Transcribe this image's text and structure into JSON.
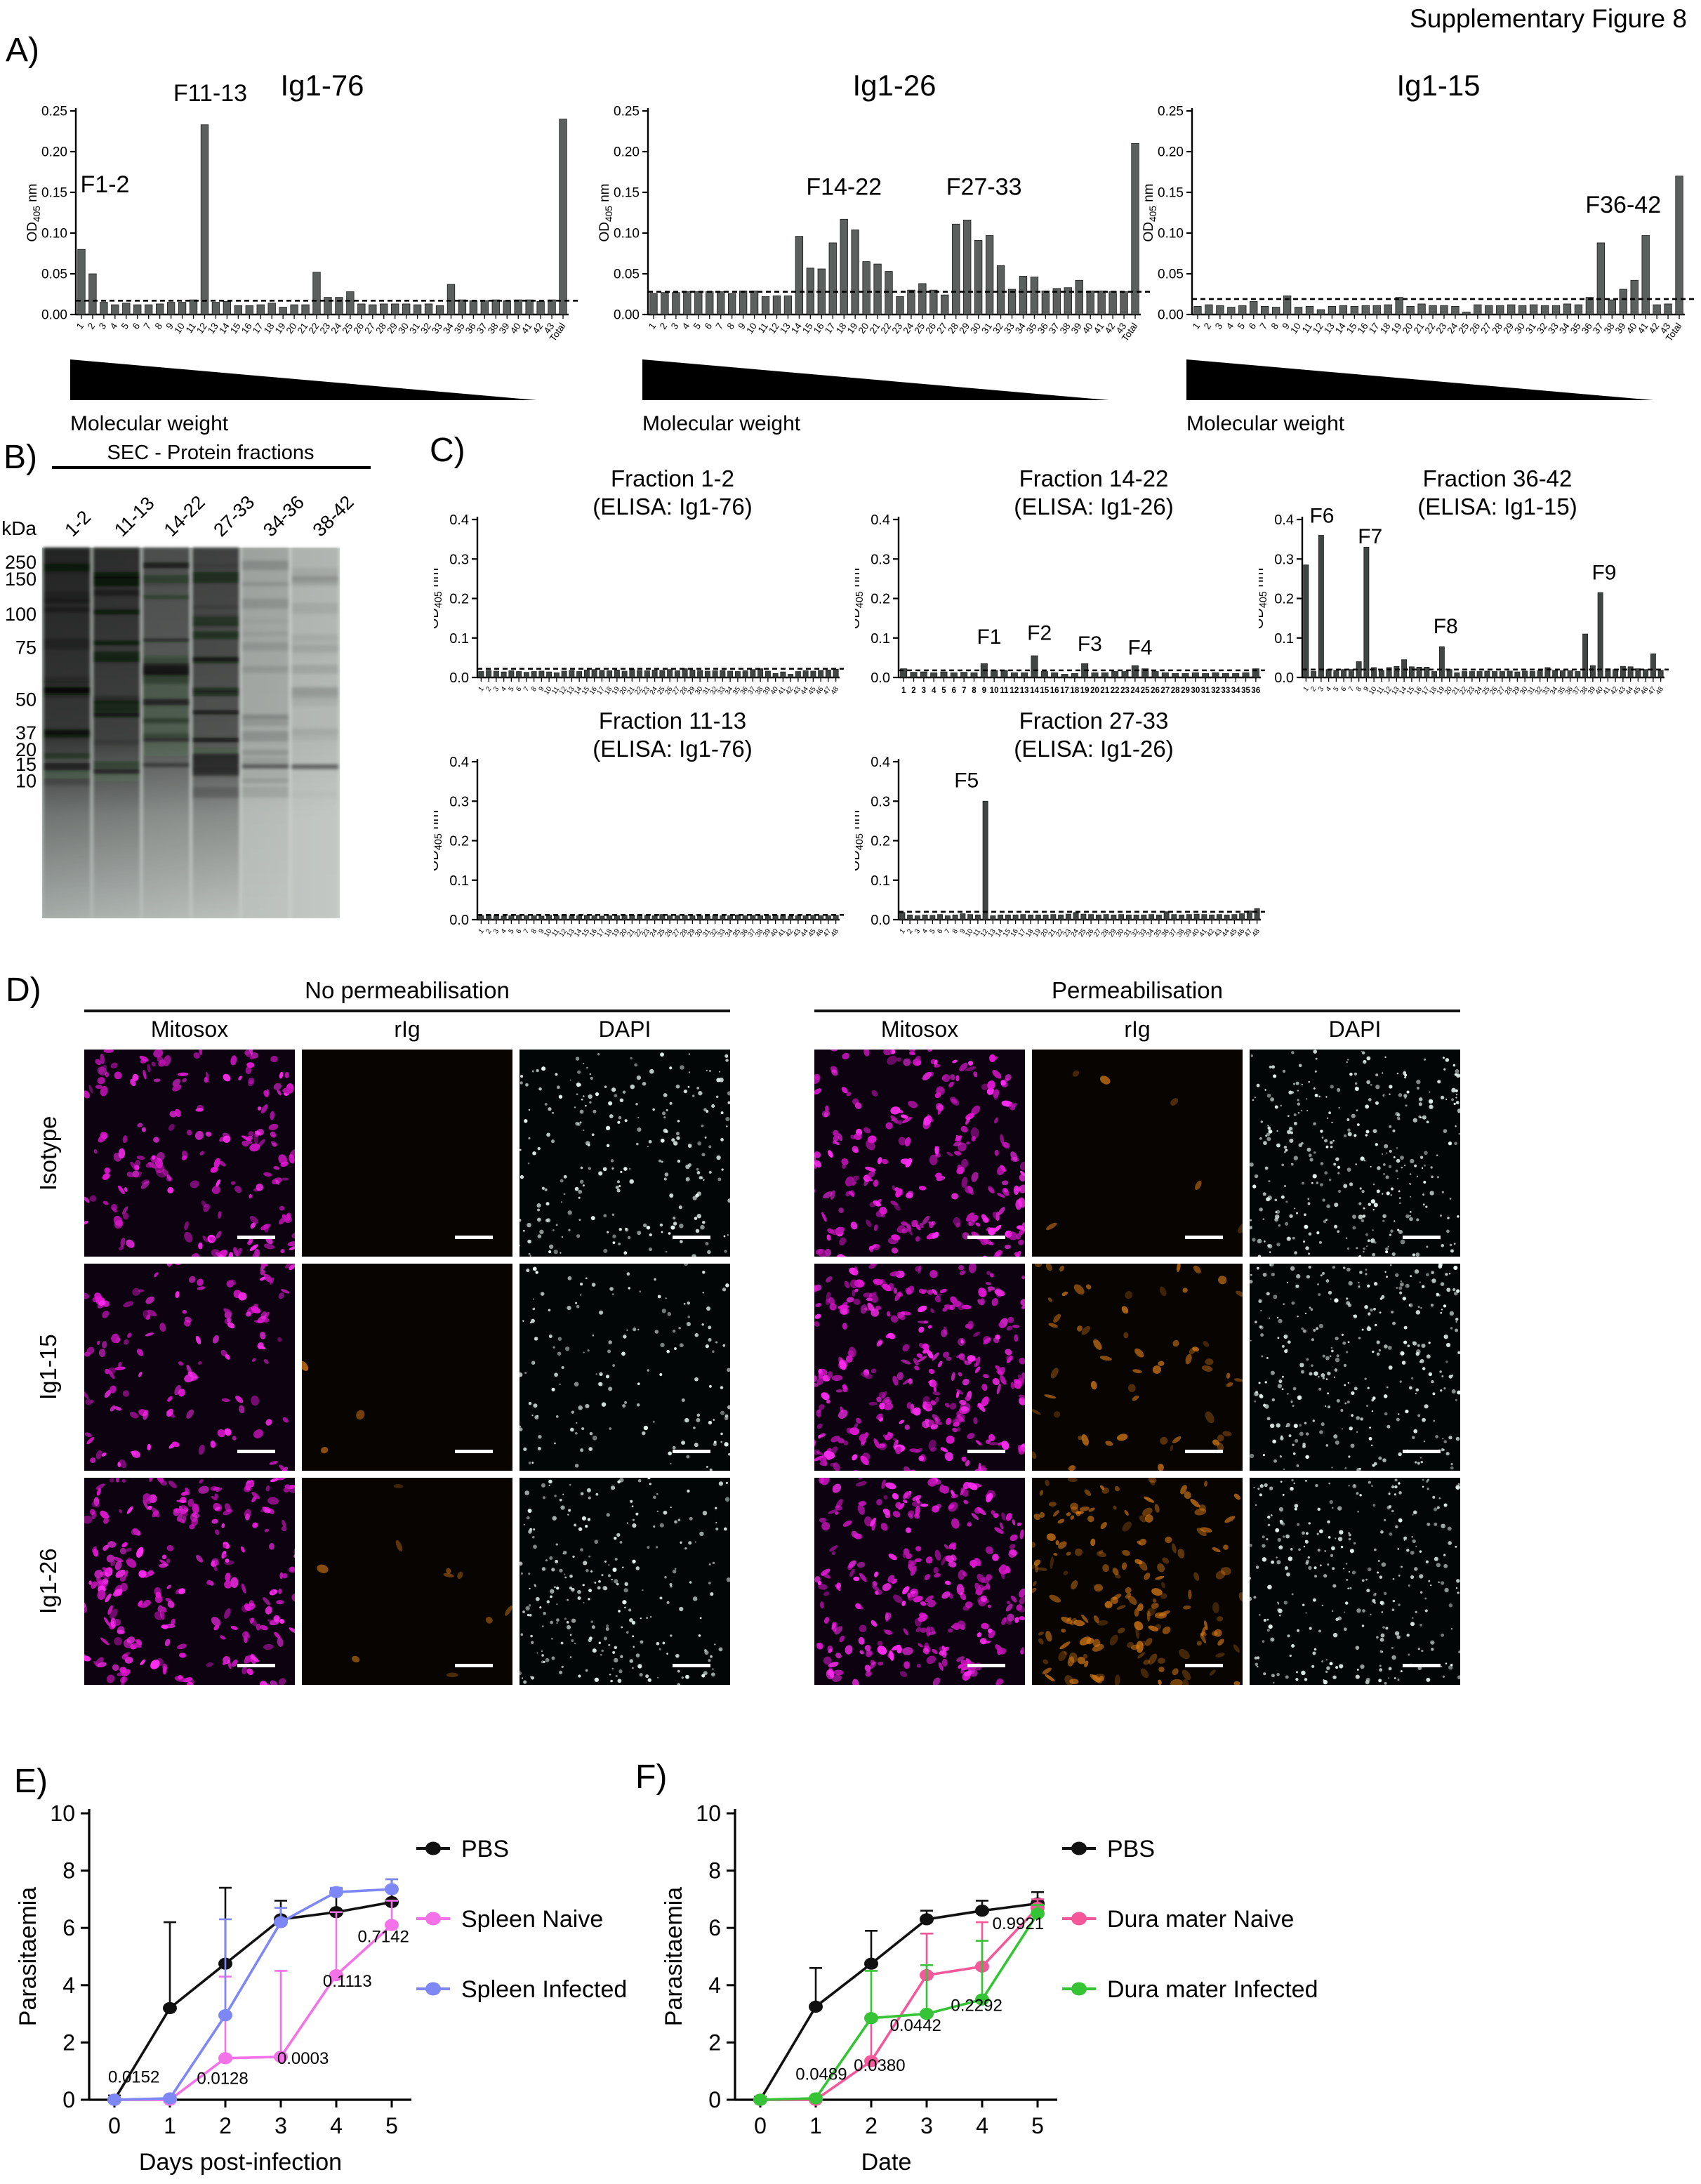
{
  "figure_title": "Supplementary Figure 8",
  "panels": {
    "a": "A)",
    "b": "B)",
    "c": "C)",
    "d": "D)",
    "e": "E)",
    "f": "F)"
  },
  "od_label": {
    "pre": "OD",
    "sub": "405",
    "post": " nm"
  },
  "cats44": [
    "1",
    "2",
    "3",
    "4",
    "5",
    "6",
    "7",
    "8",
    "9",
    "10",
    "11",
    "12",
    "13",
    "14",
    "15",
    "16",
    "17",
    "18",
    "19",
    "20",
    "21",
    "22",
    "23",
    "24",
    "25",
    "26",
    "27",
    "28",
    "29",
    "30",
    "31",
    "32",
    "33",
    "34",
    "35",
    "36",
    "37",
    "38",
    "39",
    "40",
    "41",
    "42",
    "43",
    "Total"
  ],
  "cats48": [
    "1",
    "2",
    "3",
    "4",
    "5",
    "6",
    "7",
    "8",
    "9",
    "10",
    "11",
    "12",
    "13",
    "14",
    "15",
    "16",
    "17",
    "18",
    "19",
    "20",
    "21",
    "22",
    "23",
    "24",
    "25",
    "26",
    "27",
    "28",
    "29",
    "30",
    "31",
    "32",
    "33",
    "34",
    "35",
    "36",
    "37",
    "38",
    "39",
    "40",
    "41",
    "42",
    "43",
    "44",
    "45",
    "46",
    "47",
    "48"
  ],
  "cats36": [
    "1",
    "2",
    "3",
    "4",
    "5",
    "6",
    "7",
    "8",
    "9",
    "10",
    "11",
    "12",
    "13",
    "14",
    "15",
    "16",
    "17",
    "18",
    "19",
    "20",
    "21",
    "22",
    "23",
    "24",
    "25",
    "26",
    "27",
    "28",
    "29",
    "30",
    "31",
    "32",
    "33",
    "34",
    "35",
    "36"
  ],
  "panelA": {
    "mw_label": "Molecular weight"
  },
  "panelB": {
    "header": "SEC - Protein fractions",
    "kda_label": "kDa",
    "lanes": [
      {
        "label": "1-2",
        "intensity": 0.95
      },
      {
        "label": "11-13",
        "intensity": 0.9
      },
      {
        "label": "14-22",
        "intensity": 0.72
      },
      {
        "label": "27-33",
        "intensity": 0.8
      },
      {
        "label": "34-36",
        "intensity": 0.22
      },
      {
        "label": "38-42",
        "intensity": 0.15
      }
    ],
    "markers": [
      {
        "kda": "250",
        "frac": 0.04
      },
      {
        "kda": "150",
        "frac": 0.085
      },
      {
        "kda": "100",
        "frac": 0.18
      },
      {
        "kda": "75",
        "frac": 0.27
      },
      {
        "kda": "50",
        "frac": 0.41
      },
      {
        "kda": "37",
        "frac": 0.5
      },
      {
        "kda": "20",
        "frac": 0.545
      },
      {
        "kda": "15",
        "frac": 0.585
      },
      {
        "kda": "10",
        "frac": 0.63
      }
    ]
  },
  "panelD": {
    "headers": [
      "No permeabilisation",
      "Permeabilisation"
    ],
    "col_labels": [
      "Mitosox",
      "rIg",
      "DAPI"
    ],
    "row_labels": [
      "Isotype",
      "Ig1-15",
      "Ig1-26"
    ],
    "colors": {
      "mitosox": "#f020e4",
      "rig": "#dd7d15",
      "dapi": "#e8f5f1"
    },
    "grid": [
      [
        {
          "t": "mito",
          "d": 0.55
        },
        {
          "t": "rig",
          "d": 0.0
        },
        {
          "t": "dapi",
          "d": 0.55
        },
        {
          "t": "mito",
          "d": 0.75
        },
        {
          "t": "rig",
          "d": 0.02
        },
        {
          "t": "dapi",
          "d": 0.8
        }
      ],
      [
        {
          "t": "mito",
          "d": 0.4
        },
        {
          "t": "rig",
          "d": 0.01
        },
        {
          "t": "dapi",
          "d": 0.35
        },
        {
          "t": "mito",
          "d": 0.95
        },
        {
          "t": "rig",
          "d": 0.18
        },
        {
          "t": "dapi",
          "d": 0.75
        }
      ],
      [
        {
          "t": "mito",
          "d": 0.75
        },
        {
          "t": "rig",
          "d": 0.03
        },
        {
          "t": "dapi",
          "d": 0.6
        },
        {
          "t": "mito",
          "d": 0.85
        },
        {
          "t": "rig",
          "d": 0.55
        },
        {
          "t": "dapi",
          "d": 0.7
        }
      ]
    ]
  },
  "chart_data": [
    {
      "id": "A1",
      "panel": "A",
      "type": "bar",
      "title": "Ig1-76",
      "ylabel": "OD405 nm",
      "xlabel": "Molecular weight",
      "cats": "cats44",
      "ymax": 0.25,
      "yticks": [
        "0.00",
        "0.05",
        "0.10",
        "0.15",
        "0.20",
        "0.25"
      ],
      "threshold": 0.017,
      "values": [
        0.08,
        0.05,
        0.015,
        0.012,
        0.014,
        0.012,
        0.012,
        0.013,
        0.015,
        0.015,
        0.018,
        0.233,
        0.015,
        0.016,
        0.011,
        0.011,
        0.012,
        0.014,
        0.009,
        0.012,
        0.012,
        0.052,
        0.021,
        0.021,
        0.028,
        0.013,
        0.012,
        0.013,
        0.013,
        0.013,
        0.012,
        0.013,
        0.011,
        0.037,
        0.018,
        0.017,
        0.017,
        0.018,
        0.017,
        0.018,
        0.018,
        0.016,
        0.018,
        0.24
      ],
      "annotations": [
        {
          "text": "F1-2",
          "xi": 2.6,
          "y": 0.15
        },
        {
          "text": "F11-13",
          "xi": 12,
          "y": 0.262
        }
      ]
    },
    {
      "id": "A2",
      "panel": "A",
      "type": "bar",
      "title": "Ig1-26",
      "ylabel": "OD405 nm",
      "xlabel": "Molecular weight",
      "cats": "cats44",
      "ymax": 0.25,
      "yticks": [
        "0.00",
        "0.05",
        "0.10",
        "0.15",
        "0.20",
        "0.25"
      ],
      "threshold": 0.028,
      "values": [
        0.026,
        0.027,
        0.027,
        0.028,
        0.028,
        0.028,
        0.028,
        0.026,
        0.029,
        0.029,
        0.022,
        0.023,
        0.023,
        0.096,
        0.057,
        0.056,
        0.088,
        0.117,
        0.104,
        0.065,
        0.062,
        0.053,
        0.022,
        0.03,
        0.038,
        0.03,
        0.024,
        0.111,
        0.116,
        0.091,
        0.097,
        0.06,
        0.031,
        0.047,
        0.046,
        0.029,
        0.032,
        0.033,
        0.042,
        0.029,
        0.029,
        0.028,
        0.028,
        0.21
      ],
      "annotations": [
        {
          "text": "F14-22",
          "xi": 17.5,
          "y": 0.147
        },
        {
          "text": "F27-33",
          "xi": 30,
          "y": 0.147
        }
      ]
    },
    {
      "id": "A3",
      "panel": "A",
      "type": "bar",
      "title": "Ig1-15",
      "ylabel": "OD405 nm",
      "xlabel": "Molecular weight",
      "cats": "cats44",
      "ymax": 0.25,
      "yticks": [
        "0.00",
        "0.05",
        "0.10",
        "0.15",
        "0.20",
        "0.25"
      ],
      "threshold": 0.019,
      "values": [
        0.01,
        0.012,
        0.011,
        0.009,
        0.011,
        0.016,
        0.01,
        0.009,
        0.023,
        0.009,
        0.01,
        0.006,
        0.01,
        0.011,
        0.01,
        0.011,
        0.011,
        0.012,
        0.021,
        0.01,
        0.013,
        0.011,
        0.011,
        0.01,
        0.003,
        0.012,
        0.011,
        0.011,
        0.012,
        0.011,
        0.012,
        0.011,
        0.011,
        0.013,
        0.012,
        0.021,
        0.088,
        0.018,
        0.031,
        0.042,
        0.097,
        0.012,
        0.013,
        0.17
      ],
      "annotations": [
        {
          "text": "F36-42",
          "xi": 38.5,
          "y": 0.125
        }
      ]
    },
    {
      "id": "C1",
      "panel": "C",
      "type": "bar",
      "title": "Fraction 1-2",
      "subtitle": "(ELISA: Ig1-76)",
      "ylabel": "OD405 nm",
      "cats": "cats48",
      "ymax": 0.4,
      "yticks": [
        "0.0",
        "0.1",
        "0.2",
        "0.3",
        "0.4"
      ],
      "threshold": 0.022,
      "values": [
        0.015,
        0.018,
        0.016,
        0.014,
        0.017,
        0.015,
        0.013,
        0.015,
        0.016,
        0.014,
        0.012,
        0.016,
        0.018,
        0.015,
        0.019,
        0.02,
        0.018,
        0.017,
        0.019,
        0.016,
        0.02,
        0.018,
        0.017,
        0.019,
        0.018,
        0.02,
        0.017,
        0.022,
        0.019,
        0.018,
        0.016,
        0.017,
        0.018,
        0.016,
        0.015,
        0.017,
        0.02,
        0.022,
        0.016,
        0.01,
        0.014,
        0.008,
        0.015,
        0.017,
        0.016,
        0.018,
        0.019,
        0.021
      ],
      "annotations": []
    },
    {
      "id": "C2",
      "panel": "C",
      "type": "bar",
      "title": "Fraction 14-22",
      "subtitle": "(ELISA: Ig1-26)",
      "ylabel": "OD405 nm",
      "cats": "cats36",
      "upright": true,
      "ymax": 0.4,
      "yticks": [
        "0.0",
        "0.1",
        "0.2",
        "0.3",
        "0.4"
      ],
      "threshold": 0.018,
      "values": [
        0.022,
        0.013,
        0.014,
        0.012,
        0.014,
        0.012,
        0.013,
        0.012,
        0.035,
        0.018,
        0.018,
        0.012,
        0.012,
        0.055,
        0.015,
        0.012,
        0.008,
        0.01,
        0.035,
        0.012,
        0.012,
        0.015,
        0.015,
        0.03,
        0.022,
        0.015,
        0.012,
        0.01,
        0.01,
        0.012,
        0.01,
        0.012,
        0.01,
        0.01,
        0.012,
        0.022
      ],
      "annotations": [
        {
          "text": "F1",
          "xi": 9,
          "y": 0.085
        },
        {
          "text": "F2",
          "xi": 14,
          "y": 0.095
        },
        {
          "text": "F3",
          "xi": 19,
          "y": 0.068
        },
        {
          "text": "F4",
          "xi": 24,
          "y": 0.058
        }
      ]
    },
    {
      "id": "C3",
      "panel": "C",
      "type": "bar",
      "title": "Fraction 36-42",
      "subtitle": "(ELISA: Ig1-15)",
      "ylabel": "OD405 nm",
      "cats": "cats48",
      "ymax": 0.4,
      "yticks": [
        "0.0",
        "0.1",
        "0.2",
        "0.3",
        "0.4"
      ],
      "threshold": 0.02,
      "values": [
        0.285,
        0.015,
        0.36,
        0.02,
        0.018,
        0.02,
        0.02,
        0.04,
        0.33,
        0.025,
        0.018,
        0.025,
        0.028,
        0.045,
        0.027,
        0.026,
        0.026,
        0.015,
        0.078,
        0.02,
        0.012,
        0.015,
        0.015,
        0.015,
        0.016,
        0.015,
        0.015,
        0.016,
        0.014,
        0.016,
        0.015,
        0.017,
        0.025,
        0.018,
        0.017,
        0.017,
        0.015,
        0.11,
        0.03,
        0.215,
        0.022,
        0.02,
        0.028,
        0.027,
        0.022,
        0.02,
        0.06,
        0.018
      ],
      "annotations": [
        {
          "text": "F6",
          "xi": 2.6,
          "y": 0.392
        },
        {
          "text": "F7",
          "xi": 9,
          "y": 0.34
        },
        {
          "text": "F8",
          "xi": 19,
          "y": 0.112
        },
        {
          "text": "F9",
          "xi": 40,
          "y": 0.248
        }
      ]
    },
    {
      "id": "C4",
      "panel": "C",
      "type": "bar",
      "title": "Fraction 11-13",
      "subtitle": "(ELISA: Ig1-76)",
      "ylabel": "OD405 nm",
      "cats": "cats48",
      "ymax": 0.4,
      "yticks": [
        "0.0",
        "0.1",
        "0.2",
        "0.3",
        "0.4"
      ],
      "threshold": 0.012,
      "values": [
        0.01,
        0.011,
        0.01,
        0.009,
        0.01,
        0.011,
        0.01,
        0.01,
        0.009,
        0.011,
        0.01,
        0.012,
        0.01,
        0.01,
        0.011,
        0.01,
        0.009,
        0.01,
        0.01,
        0.011,
        0.012,
        0.01,
        0.011,
        0.01,
        0.013,
        0.01,
        0.01,
        0.011,
        0.01,
        0.01,
        0.009,
        0.011,
        0.01,
        0.01,
        0.012,
        0.01,
        0.011,
        0.01,
        0.01,
        0.011,
        0.01,
        0.009,
        0.01,
        0.01,
        0.011,
        0.01,
        0.01,
        0.011
      ],
      "annotations": []
    },
    {
      "id": "C5",
      "panel": "C",
      "type": "bar",
      "title": "Fraction 27-33",
      "subtitle": "(ELISA: Ig1-26)",
      "ylabel": "OD405 nm",
      "cats": "cats48",
      "ymax": 0.4,
      "yticks": [
        "0.0",
        "0.1",
        "0.2",
        "0.3",
        "0.4"
      ],
      "threshold": 0.02,
      "values": [
        0.018,
        0.012,
        0.01,
        0.012,
        0.011,
        0.013,
        0.01,
        0.012,
        0.015,
        0.013,
        0.012,
        0.3,
        0.01,
        0.012,
        0.012,
        0.012,
        0.013,
        0.012,
        0.012,
        0.012,
        0.013,
        0.012,
        0.014,
        0.018,
        0.014,
        0.013,
        0.012,
        0.013,
        0.012,
        0.013,
        0.012,
        0.012,
        0.012,
        0.013,
        0.012,
        0.02,
        0.013,
        0.012,
        0.013,
        0.014,
        0.013,
        0.012,
        0.013,
        0.012,
        0.013,
        0.015,
        0.022,
        0.028
      ],
      "annotations": [
        {
          "text": "F5",
          "xi": 9,
          "y": 0.335
        }
      ]
    },
    {
      "id": "E",
      "panel": "E",
      "type": "line",
      "xlabel": "Days post-infection",
      "ylabel": "Parasitaemia",
      "x": [
        0,
        1,
        2,
        3,
        4,
        5
      ],
      "ymax": 10,
      "yticks": [
        0,
        2,
        4,
        6,
        8,
        10
      ],
      "series": [
        {
          "label": "PBS",
          "color": "#111111",
          "y": [
            0,
            3.2,
            4.75,
            6.3,
            6.55,
            6.9
          ],
          "err": [
            0.15,
            3.0,
            2.65,
            0.65,
            0.8,
            0.8
          ]
        },
        {
          "label": "Spleen Naive",
          "color": "#f472e8",
          "y": [
            0,
            0,
            1.45,
            1.5,
            4.35,
            6.1
          ],
          "err": [
            0,
            0,
            2.85,
            3.0,
            2.2,
            0.85
          ]
        },
        {
          "label": "Spleen Infected",
          "color": "#7d87f5",
          "y": [
            0,
            0.05,
            2.95,
            6.2,
            7.25,
            7.35
          ],
          "err": [
            0,
            0,
            3.35,
            0.5,
            0.15,
            0.35
          ]
        }
      ],
      "annotations": [
        {
          "text": "0.0152",
          "x": 0.35,
          "y": 0.6
        },
        {
          "text": "0.0128",
          "x": 1.95,
          "y": 0.55
        },
        {
          "text": "0.0003",
          "x": 3.4,
          "y": 1.25
        },
        {
          "text": "0.1113",
          "x": 4.2,
          "y": 3.95
        },
        {
          "text": "0.7142",
          "x": 4.85,
          "y": 5.5
        }
      ]
    },
    {
      "id": "F",
      "panel": "F",
      "type": "line",
      "xlabel": "Date",
      "ylabel": "Parasitaemia",
      "x": [
        0,
        1,
        2,
        3,
        4,
        5
      ],
      "ymax": 10,
      "yticks": [
        0,
        2,
        4,
        6,
        8,
        10
      ],
      "series": [
        {
          "label": "PBS",
          "color": "#111111",
          "y": [
            0,
            3.25,
            4.75,
            6.3,
            6.6,
            6.85
          ],
          "err": [
            0.1,
            1.35,
            1.15,
            0.3,
            0.35,
            0.4
          ]
        },
        {
          "label": "Dura mater Naive",
          "color": "#f4589b",
          "y": [
            0,
            0,
            1.35,
            4.35,
            4.65,
            6.7
          ],
          "err": [
            0,
            0,
            1.5,
            1.45,
            1.55,
            0.3
          ]
        },
        {
          "label": "Dura mater Infected",
          "color": "#35c435",
          "y": [
            0,
            0.05,
            2.85,
            3.0,
            3.5,
            6.5
          ],
          "err": [
            0,
            0,
            1.65,
            1.7,
            2.05,
            0.3
          ]
        }
      ],
      "annotations": [
        {
          "text": "0.0489",
          "x": 1.1,
          "y": 0.7
        },
        {
          "text": "0.0380",
          "x": 2.15,
          "y": 1.0
        },
        {
          "text": "0.0442",
          "x": 2.8,
          "y": 2.4
        },
        {
          "text": "0.2292",
          "x": 3.9,
          "y": 3.1
        },
        {
          "text": "0.9921",
          "x": 4.65,
          "y": 5.95
        }
      ]
    }
  ]
}
